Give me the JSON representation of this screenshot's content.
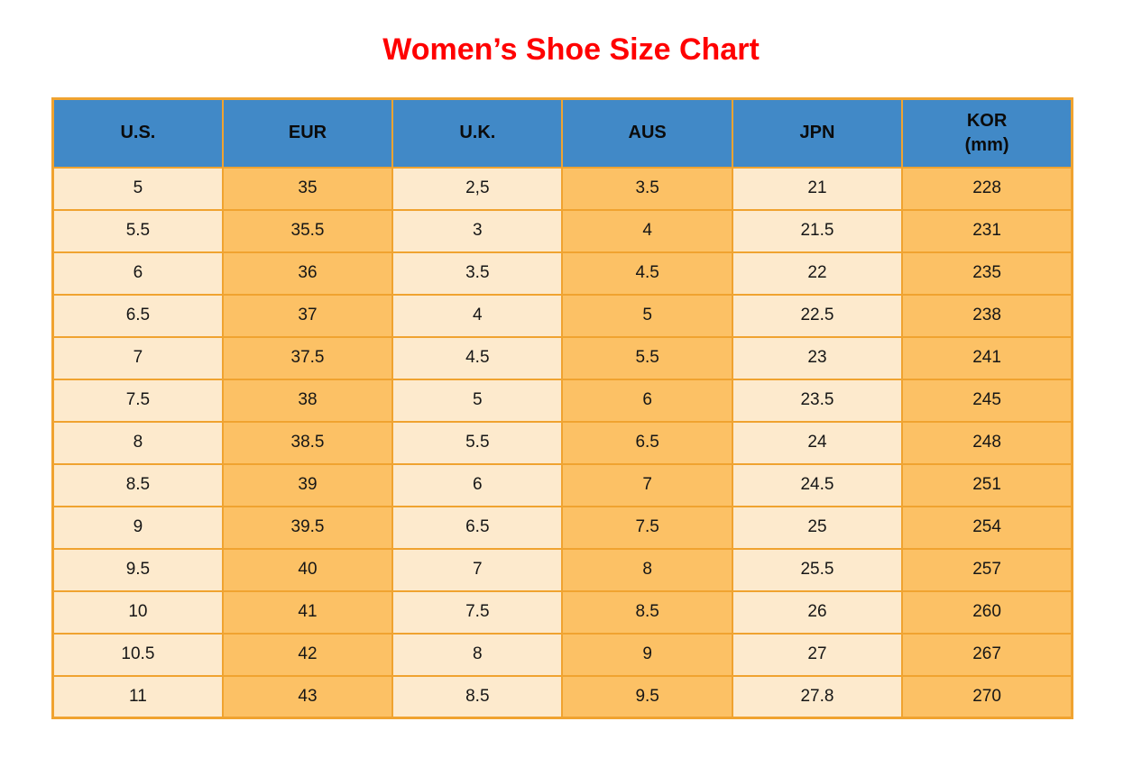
{
  "title": {
    "text": "Women’s Shoe Size Chart"
  },
  "colors": {
    "title": "#ff0000",
    "header_bg": "#4189c7",
    "border": "#f0a330",
    "cell_light": "#fdeacd",
    "cell_orange": "#fcc165",
    "text": "#161616"
  },
  "chart_data": {
    "type": "table",
    "title": "Women’s Shoe Size Chart",
    "columns": [
      {
        "key": "us",
        "label": "U.S.",
        "sublabel": "",
        "shade": "light"
      },
      {
        "key": "eur",
        "label": "EUR",
        "sublabel": "",
        "shade": "orange"
      },
      {
        "key": "uk",
        "label": "U.K.",
        "sublabel": "",
        "shade": "light"
      },
      {
        "key": "aus",
        "label": "AUS",
        "sublabel": "",
        "shade": "orange"
      },
      {
        "key": "jpn",
        "label": "JPN",
        "sublabel": "",
        "shade": "light"
      },
      {
        "key": "kor",
        "label": "KOR",
        "sublabel": "(mm)",
        "shade": "orange"
      }
    ],
    "rows": [
      [
        "5",
        "35",
        "2,5",
        "3.5",
        "21",
        "228"
      ],
      [
        "5.5",
        "35.5",
        "3",
        "4",
        "21.5",
        "231"
      ],
      [
        "6",
        "36",
        "3.5",
        "4.5",
        "22",
        "235"
      ],
      [
        "6.5",
        "37",
        "4",
        "5",
        "22.5",
        "238"
      ],
      [
        "7",
        "37.5",
        "4.5",
        "5.5",
        "23",
        "241"
      ],
      [
        "7.5",
        "38",
        "5",
        "6",
        "23.5",
        "245"
      ],
      [
        "8",
        "38.5",
        "5.5",
        "6.5",
        "24",
        "248"
      ],
      [
        "8.5",
        "39",
        "6",
        "7",
        "24.5",
        "251"
      ],
      [
        "9",
        "39.5",
        "6.5",
        "7.5",
        "25",
        "254"
      ],
      [
        "9.5",
        "40",
        "7",
        "8",
        "25.5",
        "257"
      ],
      [
        "10",
        "41",
        "7.5",
        "8.5",
        "26",
        "260"
      ],
      [
        "10.5",
        "42",
        "8",
        "9",
        "27",
        "267"
      ],
      [
        "11",
        "43",
        "8.5",
        "9.5",
        "27.8",
        "270"
      ]
    ]
  }
}
